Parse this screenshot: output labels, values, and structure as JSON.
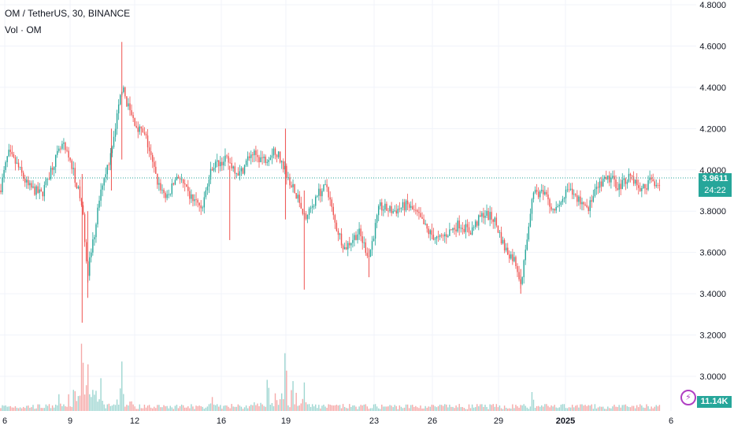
{
  "header": {
    "title": "OM / TetherUS, 30, BINANCE",
    "volume_label": "Vol · OM"
  },
  "price_tags": {
    "last_price": "3.9611",
    "countdown": "24:22",
    "volume": "11.14K"
  },
  "colors": {
    "up": "#26a69a",
    "down": "#ef5350",
    "grid": "#f0f3fa",
    "last_price_line": "#26a69a",
    "vol_up": "#9ed6d1",
    "vol_down": "#f5a9a8"
  },
  "icons": {
    "bolt": "bolt-icon"
  },
  "chart_data": {
    "type": "candlestick",
    "symbol": "OM / TetherUS",
    "interval": "30",
    "exchange": "BINANCE",
    "y_ticks": [
      "4.8000",
      "4.6000",
      "4.4000",
      "4.2000",
      "4.0000",
      "3.8000",
      "3.6000",
      "3.4000",
      "3.2000",
      "3.0000"
    ],
    "ylim": [
      2.88,
      4.84
    ],
    "x_ticks": [
      "6",
      "9",
      "12",
      "16",
      "19",
      "23",
      "26",
      "29",
      "2025",
      "6"
    ],
    "last_price": 3.9611,
    "price_path": [
      {
        "x": 0,
        "y": 3.9
      },
      {
        "x": 0.012,
        "y": 4.08
      },
      {
        "x": 0.025,
        "y": 4.02
      },
      {
        "x": 0.04,
        "y": 3.92
      },
      {
        "x": 0.06,
        "y": 3.88
      },
      {
        "x": 0.075,
        "y": 4.02
      },
      {
        "x": 0.09,
        "y": 4.12
      },
      {
        "x": 0.105,
        "y": 4.0
      },
      {
        "x": 0.118,
        "y": 3.82
      },
      {
        "x": 0.126,
        "y": 3.5
      },
      {
        "x": 0.135,
        "y": 3.68
      },
      {
        "x": 0.145,
        "y": 3.92
      },
      {
        "x": 0.16,
        "y": 4.08
      },
      {
        "x": 0.175,
        "y": 4.4
      },
      {
        "x": 0.19,
        "y": 4.25
      },
      {
        "x": 0.21,
        "y": 4.15
      },
      {
        "x": 0.225,
        "y": 3.95
      },
      {
        "x": 0.24,
        "y": 3.86
      },
      {
        "x": 0.255,
        "y": 3.98
      },
      {
        "x": 0.27,
        "y": 3.88
      },
      {
        "x": 0.29,
        "y": 3.82
      },
      {
        "x": 0.305,
        "y": 4.02
      },
      {
        "x": 0.325,
        "y": 4.05
      },
      {
        "x": 0.345,
        "y": 3.98
      },
      {
        "x": 0.36,
        "y": 4.08
      },
      {
        "x": 0.38,
        "y": 4.05
      },
      {
        "x": 0.395,
        "y": 4.1
      },
      {
        "x": 0.41,
        "y": 4.0
      },
      {
        "x": 0.425,
        "y": 3.88
      },
      {
        "x": 0.44,
        "y": 3.76
      },
      {
        "x": 0.455,
        "y": 3.88
      },
      {
        "x": 0.47,
        "y": 3.92
      },
      {
        "x": 0.48,
        "y": 3.75
      },
      {
        "x": 0.495,
        "y": 3.62
      },
      {
        "x": 0.515,
        "y": 3.7
      },
      {
        "x": 0.53,
        "y": 3.58
      },
      {
        "x": 0.545,
        "y": 3.82
      },
      {
        "x": 0.565,
        "y": 3.8
      },
      {
        "x": 0.585,
        "y": 3.83
      },
      {
        "x": 0.6,
        "y": 3.78
      },
      {
        "x": 0.615,
        "y": 3.7
      },
      {
        "x": 0.63,
        "y": 3.66
      },
      {
        "x": 0.645,
        "y": 3.7
      },
      {
        "x": 0.66,
        "y": 3.74
      },
      {
        "x": 0.675,
        "y": 3.7
      },
      {
        "x": 0.695,
        "y": 3.79
      },
      {
        "x": 0.71,
        "y": 3.76
      },
      {
        "x": 0.725,
        "y": 3.62
      },
      {
        "x": 0.74,
        "y": 3.56
      },
      {
        "x": 0.748,
        "y": 3.46
      },
      {
        "x": 0.755,
        "y": 3.6
      },
      {
        "x": 0.765,
        "y": 3.9
      },
      {
        "x": 0.78,
        "y": 3.88
      },
      {
        "x": 0.8,
        "y": 3.8
      },
      {
        "x": 0.815,
        "y": 3.9
      },
      {
        "x": 0.83,
        "y": 3.86
      },
      {
        "x": 0.845,
        "y": 3.82
      },
      {
        "x": 0.86,
        "y": 3.92
      },
      {
        "x": 0.875,
        "y": 3.96
      },
      {
        "x": 0.89,
        "y": 3.92
      },
      {
        "x": 0.905,
        "y": 3.98
      },
      {
        "x": 0.92,
        "y": 3.9
      },
      {
        "x": 0.935,
        "y": 3.95
      },
      {
        "x": 0.95,
        "y": 3.93
      }
    ],
    "plot_spikes": [
      {
        "x": 0.118,
        "high": 3.98,
        "low": 3.26
      },
      {
        "x": 0.126,
        "high": 3.8,
        "low": 3.38
      },
      {
        "x": 0.175,
        "high": 4.62,
        "low": 4.05
      },
      {
        "x": 0.33,
        "high": 4.02,
        "low": 3.66
      },
      {
        "x": 0.41,
        "high": 4.2,
        "low": 3.76
      },
      {
        "x": 0.437,
        "high": 3.9,
        "low": 3.42
      },
      {
        "x": 0.53,
        "high": 3.62,
        "low": 3.48
      },
      {
        "x": 0.748,
        "high": 3.52,
        "low": 3.4
      },
      {
        "x": 0.16,
        "high": 4.2,
        "low": 3.9
      }
    ],
    "volume_peaks": [
      {
        "x": 0.118,
        "v": 1.0
      },
      {
        "x": 0.126,
        "v": 0.75
      },
      {
        "x": 0.175,
        "v": 0.6
      },
      {
        "x": 0.385,
        "v": 0.55
      },
      {
        "x": 0.41,
        "v": 0.85
      },
      {
        "x": 0.42,
        "v": 0.45
      },
      {
        "x": 0.437,
        "v": 0.35
      },
      {
        "x": 0.145,
        "v": 0.4
      },
      {
        "x": 0.765,
        "v": 0.28
      },
      {
        "x": 0.085,
        "v": 0.22
      },
      {
        "x": 0.305,
        "v": 0.25
      }
    ]
  }
}
